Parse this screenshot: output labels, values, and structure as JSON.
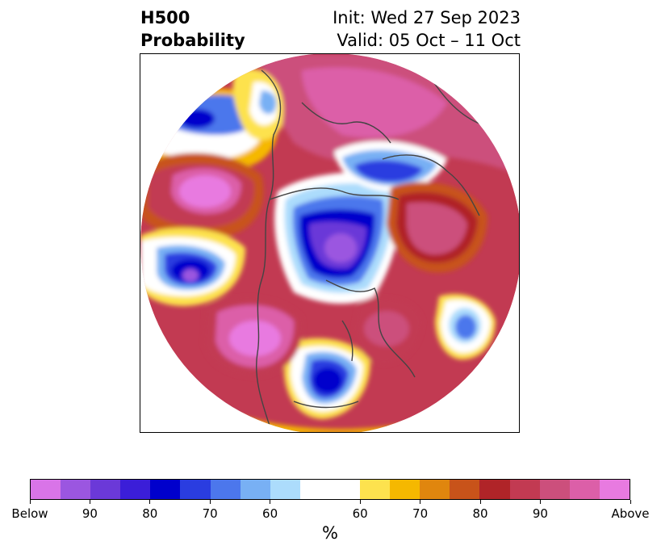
{
  "title": {
    "line1_left": "H500",
    "line2_left": "Probability",
    "line1_right": "Init: Wed 27 Sep 2023",
    "line2_right": "Valid: 05 Oct – 11 Oct"
  },
  "colorbar": {
    "unit": "%",
    "colors": {
      "below": [
        "#d974e8",
        "#9b56e0",
        "#6b39d8",
        "#3b1ed8",
        "#0000cc",
        "#2a3de0",
        "#4c77ec",
        "#78b0f4",
        "#acdcfc"
      ],
      "neutral": "#ffffff",
      "above": [
        "#fde24e",
        "#f5b800",
        "#e0860e",
        "#c8531a",
        "#b02428",
        "#c23a52",
        "#cc4f7c",
        "#dc5fa8",
        "#e87ae0"
      ]
    },
    "tick_labels": [
      "Below",
      "90",
      "80",
      "70",
      "60",
      "60",
      "70",
      "80",
      "90",
      "Above"
    ]
  },
  "map": {
    "projection": "north-polar-stereographic",
    "anomaly_regions": [
      {
        "category": "above",
        "area": "north-pacific"
      },
      {
        "category": "above",
        "area": "western-north-america"
      },
      {
        "category": "above",
        "area": "eastern-canada"
      },
      {
        "category": "above",
        "area": "siberia-arctic"
      },
      {
        "category": "above",
        "area": "northern-europe"
      },
      {
        "category": "below",
        "area": "arctic-ocean"
      },
      {
        "category": "below",
        "area": "gulf-of-alaska-pacific"
      },
      {
        "category": "below",
        "area": "central-united-states"
      },
      {
        "category": "below",
        "area": "mid-atlantic-ocean"
      },
      {
        "category": "below",
        "area": "east-asia"
      }
    ]
  }
}
